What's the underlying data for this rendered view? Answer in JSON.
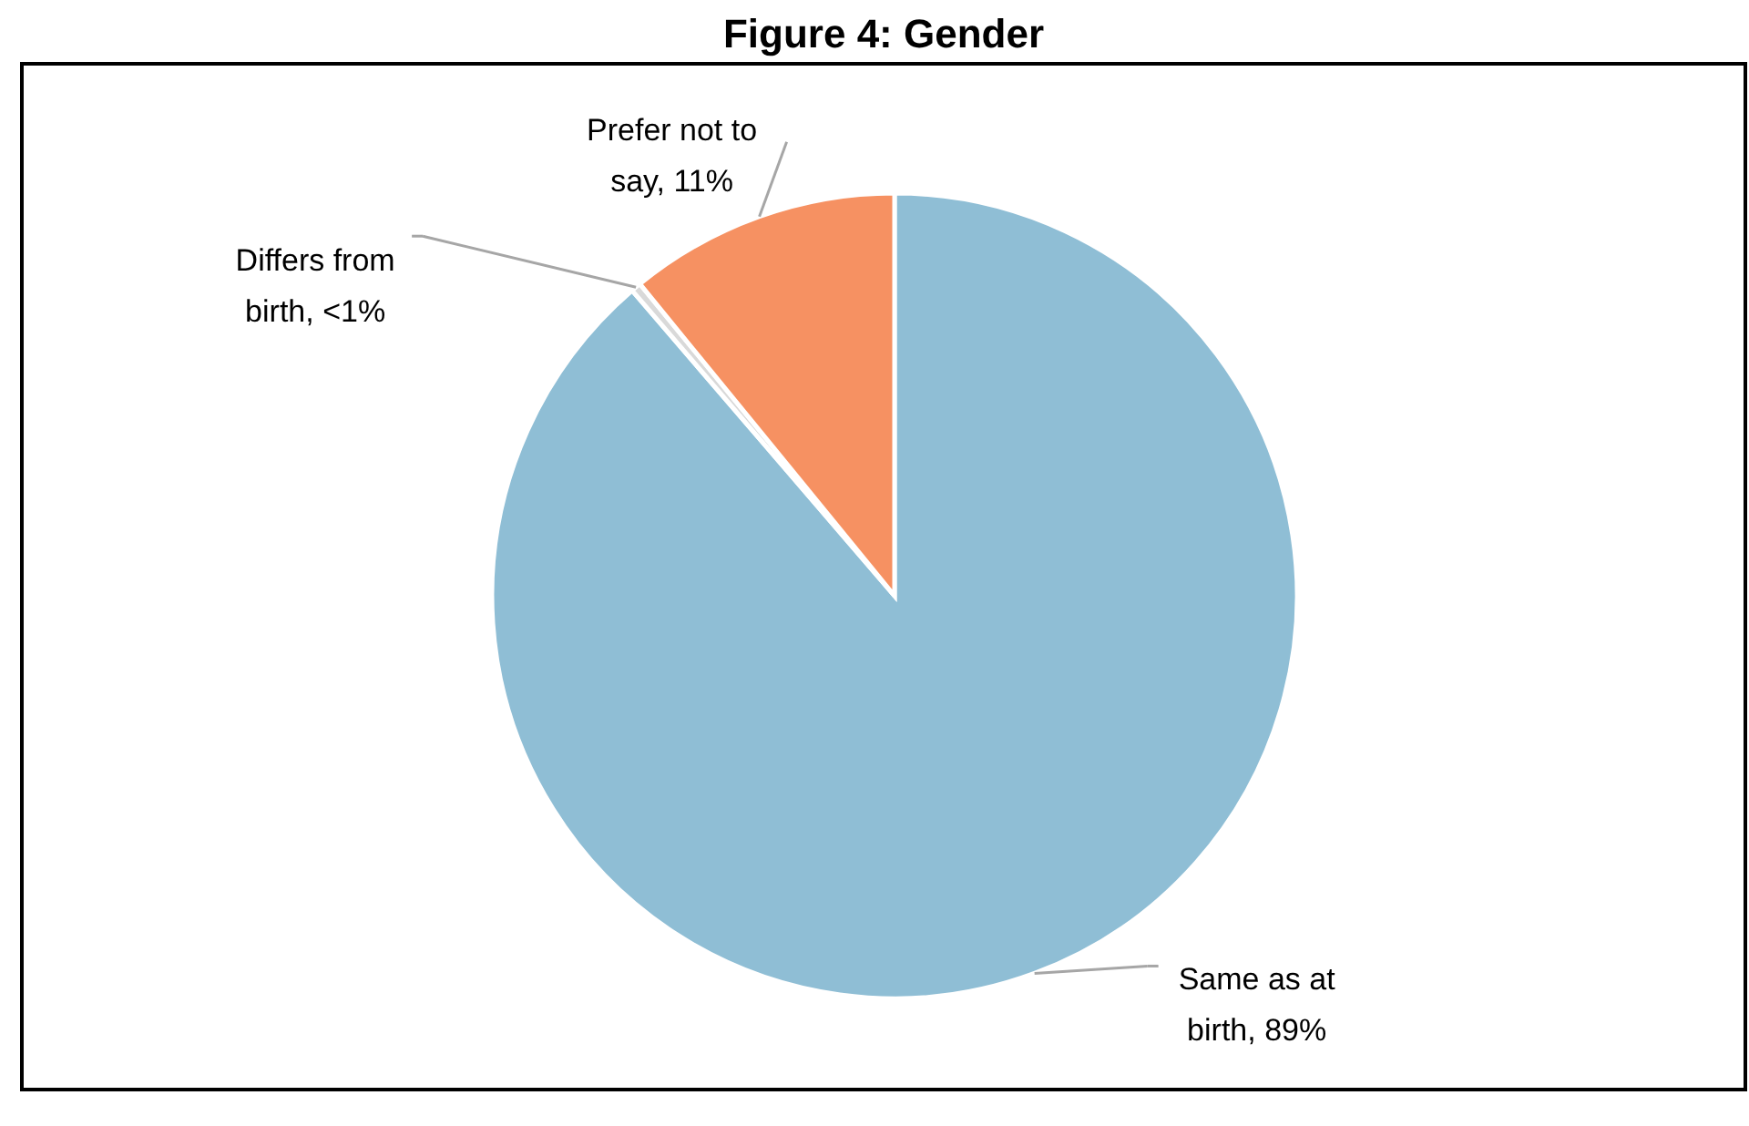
{
  "chart_data": {
    "type": "pie",
    "title": "Figure 4: Gender",
    "categories": [
      "Same as at birth",
      "Differs from birth",
      "Prefer not to say"
    ],
    "values": [
      88.7,
      0.4,
      10.9
    ],
    "colors": [
      "#8fbed5",
      "#d9d9d9",
      "#f69162"
    ],
    "value_labels": [
      "89%",
      "<1%",
      "11%"
    ],
    "legend": false
  }
}
